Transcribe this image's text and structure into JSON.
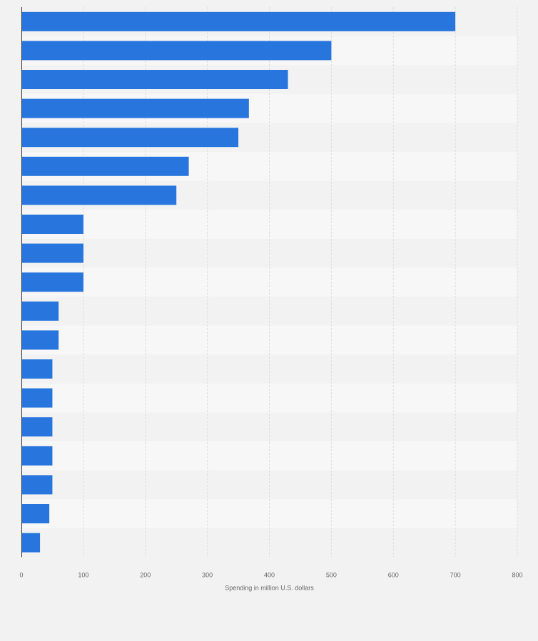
{
  "chart_data": {
    "type": "bar",
    "orientation": "horizontal",
    "categories": [
      "",
      "",
      "",
      "",
      "",
      "",
      "",
      "",
      "",
      "",
      "",
      "",
      "",
      "",
      "",
      "",
      "",
      "",
      ""
    ],
    "values": [
      700,
      500,
      430,
      367,
      350,
      270,
      250,
      100,
      100,
      100,
      60,
      60,
      50,
      50,
      50,
      50,
      50,
      45,
      30
    ],
    "xlabel": "Spending in million U.S. dollars",
    "xlim": [
      0,
      800
    ],
    "xticks": [
      "0",
      "100",
      "200",
      "300",
      "400",
      "500",
      "600",
      "700",
      "800"
    ],
    "grid": true,
    "bar_color": "#2876dd",
    "band_colors": [
      "#f2f2f2",
      "#f7f7f7"
    ],
    "gridline_color": "#dddddd"
  }
}
